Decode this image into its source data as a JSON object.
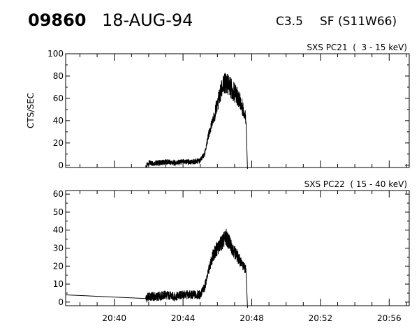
{
  "header": {
    "event_id": "09860",
    "date": "18-AUG-94",
    "goes_class": "C3.5",
    "location": "SF (S11W66)"
  },
  "chart_data": [
    {
      "type": "line",
      "title": "SXS PC21  (  3 - 15 keV)",
      "ylabel": "CTS/SEC",
      "xlabel": "",
      "ylim": [
        -2,
        100
      ],
      "yticks": [
        0,
        20,
        40,
        60,
        80,
        100
      ],
      "ytick_labels": [
        "0",
        "20",
        "40",
        "60",
        "80",
        "100"
      ],
      "xlim": [
        "20:37:10",
        "20:57:10"
      ],
      "xticks": [
        "20:40",
        "20:44",
        "20:48",
        "20:52",
        "20:56"
      ],
      "xtick_labels": [],
      "grid": false,
      "series": [
        {
          "x": [
            "20:37:10",
            "20:41:50",
            "20:42:00",
            "20:42:30",
            "20:43:00",
            "20:43:30",
            "20:44:00",
            "20:44:30",
            "20:45:00",
            "20:45:15",
            "20:45:30",
            "20:45:45",
            "20:46:00",
            "20:46:15",
            "20:46:30",
            "20:46:45",
            "20:47:00",
            "20:47:15",
            "20:47:30",
            "20:47:40",
            "20:47:45",
            "20:47:46"
          ],
          "y": [
            -2,
            -2,
            2,
            2,
            3,
            2,
            3,
            3,
            4,
            10,
            28,
            40,
            55,
            68,
            75,
            70,
            65,
            60,
            50,
            42,
            -3,
            -3
          ]
        }
      ]
    },
    {
      "type": "line",
      "title": "SXS PC22  ( 15 - 40 keV)",
      "ylabel": "",
      "xlabel": "",
      "ylim": [
        -2,
        62
      ],
      "yticks": [
        0,
        10,
        20,
        30,
        40,
        50,
        60
      ],
      "ytick_labels": [
        "0",
        "10",
        "20",
        "30",
        "40",
        "50",
        "60"
      ],
      "xlim": [
        "20:37:10",
        "20:57:10"
      ],
      "xticks": [
        "20:40",
        "20:44",
        "20:48",
        "20:52",
        "20:56"
      ],
      "xtick_labels": [
        "20:40",
        "20:44",
        "20:48",
        "20:52",
        "20:56"
      ],
      "grid": false,
      "series": [
        {
          "x": [
            "20:37:10",
            "20:41:50",
            "20:42:00",
            "20:42:30",
            "20:43:00",
            "20:43:30",
            "20:44:00",
            "20:44:30",
            "20:45:00",
            "20:45:15",
            "20:45:30",
            "20:45:45",
            "20:46:00",
            "20:46:15",
            "20:46:30",
            "20:46:45",
            "20:47:00",
            "20:47:15",
            "20:47:30",
            "20:47:40",
            "20:47:45",
            "20:47:46"
          ],
          "y": [
            4,
            2,
            3,
            3,
            4,
            3,
            4,
            4,
            4,
            8,
            18,
            26,
            30,
            33,
            36,
            32,
            28,
            24,
            20,
            18,
            -3,
            -3
          ]
        }
      ]
    }
  ]
}
